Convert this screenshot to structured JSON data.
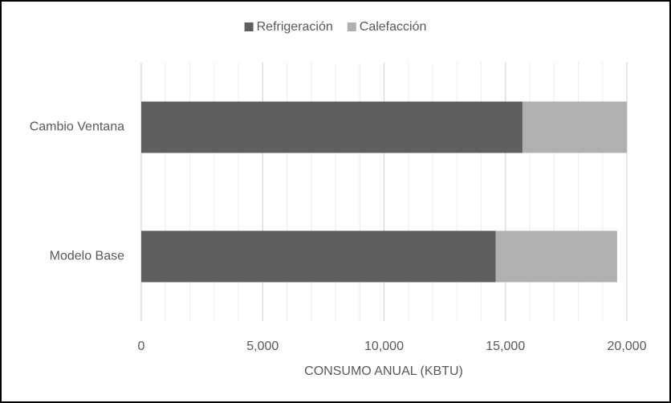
{
  "chart_data": {
    "type": "stacked_barh",
    "categories": [
      "Cambio Ventana",
      "Modelo Base"
    ],
    "series": [
      {
        "name": "Refrigeración",
        "color": "#5f5f5f",
        "values": [
          15700,
          14600
        ]
      },
      {
        "name": "Calefacción",
        "color": "#b0b0b0",
        "values": [
          4300,
          5000
        ]
      }
    ],
    "xlabel": "CONSUMO ANUAL (KBTU)",
    "xlim": [
      0,
      20000
    ],
    "xticks": [
      0,
      {
        "value": 5000,
        "label": "5,000"
      },
      {
        "value": 10000,
        "label": "10,000"
      },
      {
        "value": 15000,
        "label": "15,000"
      },
      {
        "value": 20000,
        "label": "20,000"
      }
    ],
    "xminorticks": [
      1000,
      2000,
      3000,
      4000,
      6000,
      7000,
      8000,
      9000,
      11000,
      12000,
      13000,
      14000,
      16000,
      17000,
      18000,
      19000
    ],
    "grid": true,
    "legend": "top"
  }
}
